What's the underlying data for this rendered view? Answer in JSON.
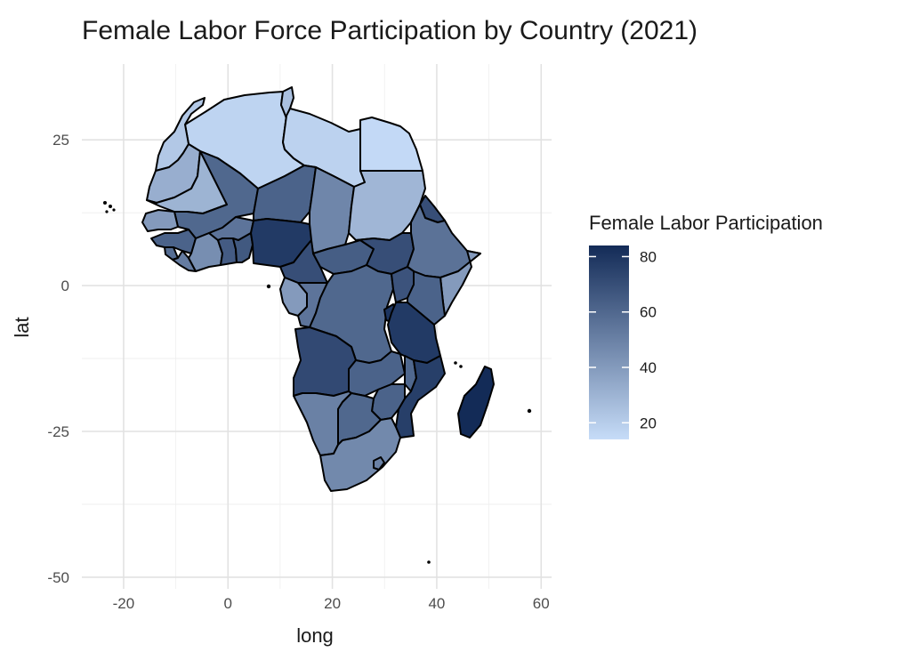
{
  "title": "Female Labor Force Participation by Country (2021)",
  "chart_data": {
    "type": "choropleth",
    "title": "Female Labor Force Participation by Country (2021)",
    "xlabel": "long",
    "ylabel": "lat",
    "xlim": [
      -28,
      62
    ],
    "ylim": [
      -52,
      38
    ],
    "x_ticks": [
      -20,
      0,
      20,
      40,
      60
    ],
    "y_ticks": [
      -50,
      -25,
      0,
      25
    ],
    "grid": true,
    "legend": {
      "title": "Female Labor Participation",
      "position": "right",
      "ticks": [
        20,
        40,
        60,
        80
      ],
      "range": [
        14,
        84
      ],
      "color_low": "#c6dcf8",
      "color_high": "#132b57"
    },
    "regions": [
      {
        "name": "Morocco",
        "value": 22
      },
      {
        "name": "Western Sahara",
        "value": 32
      },
      {
        "name": "Algeria",
        "value": 17
      },
      {
        "name": "Tunisia",
        "value": 25
      },
      {
        "name": "Libya",
        "value": 18
      },
      {
        "name": "Egypt",
        "value": 15
      },
      {
        "name": "Mauritania",
        "value": 30
      },
      {
        "name": "Mali",
        "value": 60
      },
      {
        "name": "Niger",
        "value": 62
      },
      {
        "name": "Chad",
        "value": 48
      },
      {
        "name": "Sudan",
        "value": 29
      },
      {
        "name": "Senegal",
        "value": 40
      },
      {
        "name": "Gambia",
        "value": 52
      },
      {
        "name": "Guinea-Bissau",
        "value": 62
      },
      {
        "name": "Guinea",
        "value": 62
      },
      {
        "name": "Sierra Leone",
        "value": 58
      },
      {
        "name": "Liberia",
        "value": 52
      },
      {
        "name": "Cote d'Ivoire",
        "value": 45
      },
      {
        "name": "Burkina Faso",
        "value": 55
      },
      {
        "name": "Ghana",
        "value": 65
      },
      {
        "name": "Togo",
        "value": 58
      },
      {
        "name": "Benin",
        "value": 66
      },
      {
        "name": "Nigeria",
        "value": 78
      },
      {
        "name": "Cameroon",
        "value": 70
      },
      {
        "name": "Central African Republic",
        "value": 64
      },
      {
        "name": "South Sudan",
        "value": 70
      },
      {
        "name": "Eritrea",
        "value": 70
      },
      {
        "name": "Ethiopia",
        "value": 56
      },
      {
        "name": "Somalia",
        "value": 40
      },
      {
        "name": "Equatorial Guinea",
        "value": 52
      },
      {
        "name": "Gabon",
        "value": 40
      },
      {
        "name": "Republic of Congo",
        "value": 55
      },
      {
        "name": "Democratic Republic of the Congo",
        "value": 60
      },
      {
        "name": "Uganda",
        "value": 68
      },
      {
        "name": "Kenya",
        "value": 62
      },
      {
        "name": "Rwanda",
        "value": 80
      },
      {
        "name": "Burundi",
        "value": 80
      },
      {
        "name": "Tanzania",
        "value": 78
      },
      {
        "name": "Angola",
        "value": 72
      },
      {
        "name": "Zambia",
        "value": 62
      },
      {
        "name": "Malawi",
        "value": 60
      },
      {
        "name": "Mozambique",
        "value": 76
      },
      {
        "name": "Zimbabwe",
        "value": 62
      },
      {
        "name": "Namibia",
        "value": 50
      },
      {
        "name": "Botswana",
        "value": 60
      },
      {
        "name": "South Africa",
        "value": 47
      },
      {
        "name": "Lesotho",
        "value": 50
      },
      {
        "name": "Eswatini",
        "value": 45
      },
      {
        "name": "Madagascar",
        "value": 84
      }
    ]
  }
}
